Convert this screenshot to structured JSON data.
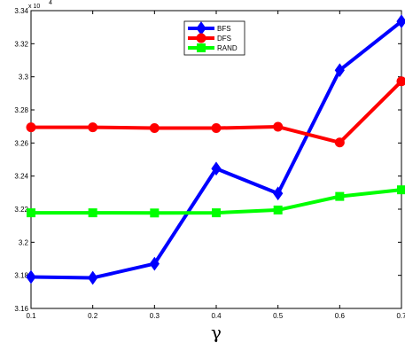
{
  "chart_data": {
    "type": "line",
    "title": "",
    "xlabel": "γ",
    "ylabel": "",
    "y_multiplier_label": "x 10",
    "y_multiplier_exponent": "4",
    "x": [
      0.1,
      0.2,
      0.3,
      0.4,
      0.5,
      0.6,
      0.7
    ],
    "xlim": [
      0.1,
      0.7
    ],
    "ylim": [
      3.16,
      3.34
    ],
    "x_ticks": [
      0.1,
      0.2,
      0.3,
      0.4,
      0.5,
      0.6,
      0.7
    ],
    "x_tick_labels": [
      "0.1",
      "0.2",
      "0.3",
      "0.4",
      "0.5",
      "0.6",
      "0.7"
    ],
    "y_ticks": [
      3.16,
      3.18,
      3.2,
      3.22,
      3.24,
      3.26,
      3.28,
      3.3,
      3.32,
      3.34
    ],
    "y_tick_labels": [
      "3.16",
      "3.18",
      "3.2",
      "3.22",
      "3.24",
      "3.26",
      "3.28",
      "3.3",
      "3.32",
      "3.34"
    ],
    "grid": false,
    "legend_position": "top-center",
    "series": [
      {
        "name": "BFS",
        "color": "#0000ff",
        "marker": "diamond",
        "values": [
          3.179,
          3.1785,
          3.187,
          3.2445,
          3.2295,
          3.304,
          3.3335
        ]
      },
      {
        "name": "DFS",
        "color": "#ff0000",
        "marker": "circle",
        "values": [
          3.2695,
          3.2695,
          3.269,
          3.269,
          3.2698,
          3.2603,
          3.2973
        ]
      },
      {
        "name": "RAND",
        "color": "#00ff00",
        "marker": "square",
        "values": [
          3.2178,
          3.2178,
          3.2177,
          3.2178,
          3.2195,
          3.2277,
          3.2317
        ]
      }
    ]
  }
}
